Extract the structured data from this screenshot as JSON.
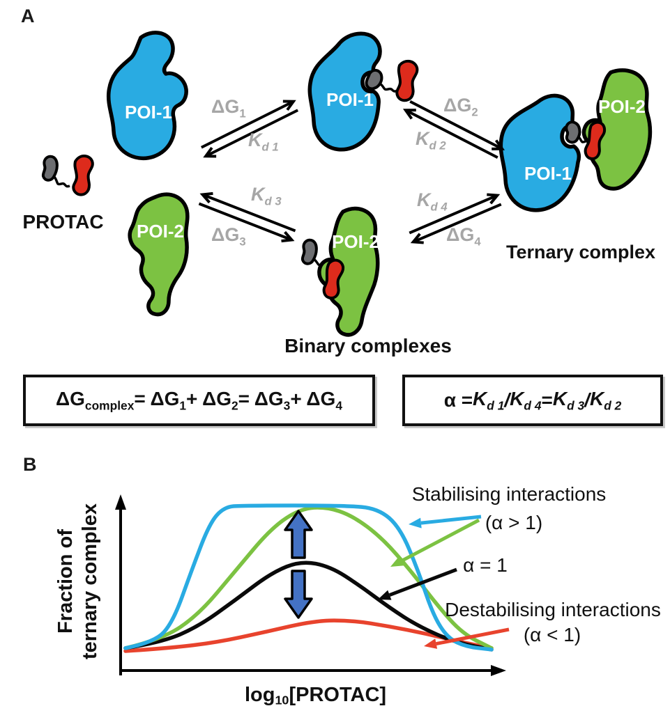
{
  "panelA": {
    "label": "A",
    "protac_label": "PROTAC",
    "ternary_label": "Ternary complex",
    "binary_label": "Binary complexes",
    "blobs": {
      "poi1_free": "POI-1",
      "poi1_binary": "POI-1",
      "poi2_free": "POI-2",
      "poi2_binary": "POI-2",
      "ternary_poi1": "POI-1",
      "ternary_poi2": "POI-2"
    },
    "arrow_labels": {
      "set1_top": {
        "base": "ΔG",
        "sub": "1"
      },
      "set1_bottom": {
        "base": "K",
        "sub": "d 1"
      },
      "set2_top": {
        "base": "ΔG",
        "sub": "2"
      },
      "set2_bottom": {
        "base": "K",
        "sub": "d 2"
      },
      "set3_top": {
        "base": "K",
        "sub": "d 3"
      },
      "set3_bottom": {
        "base": "ΔG",
        "sub": "3"
      },
      "set4_top": {
        "base": "K",
        "sub": "d 4"
      },
      "set4_bottom": {
        "base": "ΔG",
        "sub": "4"
      }
    },
    "equation_dg": {
      "segments": [
        {
          "t": "ΔG",
          "s": "complex"
        },
        {
          "t": " = ΔG",
          "s": "1"
        },
        {
          "t": " + ΔG",
          "s": "2"
        },
        {
          "t": " = ΔG",
          "s": "3"
        },
        {
          "t": " + ΔG",
          "s": "4"
        }
      ]
    },
    "equation_alpha": {
      "segments": [
        {
          "t": "α = "
        },
        {
          "t": "K",
          "s": "d 1"
        },
        {
          "t": " / "
        },
        {
          "t": "K",
          "s": "d 4"
        },
        {
          "t": " = "
        },
        {
          "t": "K",
          "s": "d 3"
        },
        {
          "t": " / "
        },
        {
          "t": "K",
          "s": "d 2"
        }
      ]
    }
  },
  "panelB": {
    "label": "B",
    "ylabel_line1": "Fraction of",
    "ylabel_line2": "ternary complex",
    "xlabel": {
      "base": "log",
      "sub": "10",
      "rest": "[PROTAC]"
    },
    "annotations": {
      "stabilising": "Stabilising interactions",
      "stabilising_alpha": "(α > 1)",
      "alpha_one": "α = 1",
      "destabilising": "Destabilising interactions",
      "destabilising_alpha": "(α < 1)"
    }
  },
  "colors": {
    "poi1_blue": "#29ABE2",
    "poi2_green": "#7CC242",
    "protac_red": "#DD2B1C",
    "protac_gray": "#6D6E71",
    "arrow_label_gray": "#A6A6A6",
    "block_arrow_blue": "#4472C4",
    "curve_blue": "#29ABE2",
    "curve_green": "#7CC242",
    "curve_black": "#0A0A0A",
    "curve_red": "#E8432D"
  },
  "chart_data": {
    "type": "line",
    "title": "",
    "xlabel": "log10[PROTAC]",
    "ylabel": "Fraction of ternary complex",
    "x_range_note": "schematic: normalised log10 PROTAC concentration 0-1",
    "ylim": [
      0,
      1
    ],
    "grid": false,
    "legend_position": "annotated arrows at right",
    "series": [
      {
        "name": "Stabilising interactions (α > 1), strong",
        "color": "#29ABE2",
        "points": [
          [
            0,
            0.02
          ],
          [
            0.08,
            0.06
          ],
          [
            0.13,
            0.2
          ],
          [
            0.18,
            0.55
          ],
          [
            0.23,
            0.88
          ],
          [
            0.27,
            0.99
          ],
          [
            0.32,
            1
          ],
          [
            0.6,
            1
          ],
          [
            0.69,
            0.98
          ],
          [
            0.75,
            0.85
          ],
          [
            0.8,
            0.55
          ],
          [
            0.84,
            0.25
          ],
          [
            0.88,
            0.09
          ],
          [
            0.93,
            0.03
          ],
          [
            1,
            0.01
          ]
        ]
      },
      {
        "name": "Stabilising interactions (α > 1), moderate",
        "color": "#7CC242",
        "points": [
          [
            0,
            0.02
          ],
          [
            0.1,
            0.08
          ],
          [
            0.2,
            0.25
          ],
          [
            0.3,
            0.55
          ],
          [
            0.4,
            0.85
          ],
          [
            0.48,
            0.98
          ],
          [
            0.55,
            0.99
          ],
          [
            0.62,
            0.93
          ],
          [
            0.7,
            0.78
          ],
          [
            0.78,
            0.55
          ],
          [
            0.85,
            0.32
          ],
          [
            0.92,
            0.12
          ],
          [
            1,
            0.02
          ]
        ]
      },
      {
        "name": "α = 1",
        "color": "#0A0A0A",
        "points": [
          [
            0,
            0.02
          ],
          [
            0.1,
            0.06
          ],
          [
            0.2,
            0.17
          ],
          [
            0.3,
            0.35
          ],
          [
            0.4,
            0.54
          ],
          [
            0.48,
            0.62
          ],
          [
            0.56,
            0.58
          ],
          [
            0.64,
            0.45
          ],
          [
            0.72,
            0.3
          ],
          [
            0.8,
            0.17
          ],
          [
            0.9,
            0.06
          ],
          [
            1,
            0.01
          ]
        ]
      },
      {
        "name": "Destabilising interactions (α < 1)",
        "color": "#E8432D",
        "points": [
          [
            0,
            0
          ],
          [
            0.12,
            0.02
          ],
          [
            0.25,
            0.06
          ],
          [
            0.38,
            0.13
          ],
          [
            0.52,
            0.21
          ],
          [
            0.62,
            0.21
          ],
          [
            0.72,
            0.17
          ],
          [
            0.82,
            0.12
          ],
          [
            0.92,
            0.06
          ],
          [
            1,
            0.02
          ]
        ]
      }
    ]
  }
}
